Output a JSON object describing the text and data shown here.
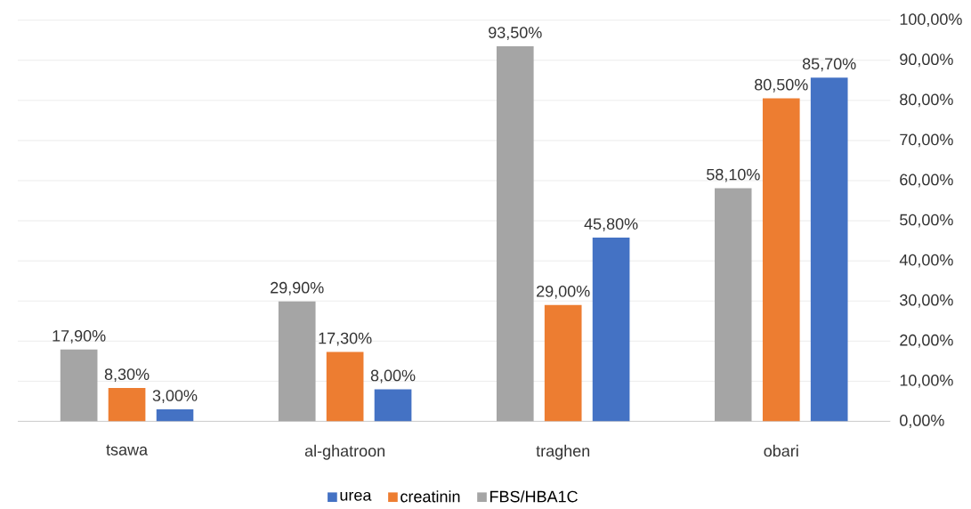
{
  "chart_data": {
    "type": "bar",
    "categories": [
      "tsawa",
      "al-ghatroon",
      "traghen",
      "obari"
    ],
    "series": [
      {
        "name": "FBS/HBA1C",
        "color": "#a5a5a5",
        "values": [
          17.9,
          29.9,
          93.5,
          58.1
        ],
        "value_labels": [
          "17,90%",
          "29,90%",
          "93,50%",
          "58,10%"
        ]
      },
      {
        "name": "creatinin",
        "color": "#ed7d31",
        "values": [
          8.3,
          17.3,
          29.0,
          80.5
        ],
        "value_labels": [
          "8,30%",
          "17,30%",
          "29,00%",
          "80,50%"
        ]
      },
      {
        "name": "urea",
        "color": "#4472c4",
        "values": [
          3.0,
          8.0,
          45.8,
          85.7
        ],
        "value_labels": [
          "3,00%",
          "8,00%",
          "45,80%",
          "85,70%"
        ]
      }
    ],
    "ylim": [
      0,
      100
    ],
    "yticks": [
      {
        "value": 0,
        "label": "0,00%"
      },
      {
        "value": 10,
        "label": "10,00%"
      },
      {
        "value": 20,
        "label": "20,00%"
      },
      {
        "value": 30,
        "label": "30,00%"
      },
      {
        "value": 40,
        "label": "40,00%"
      },
      {
        "value": 50,
        "label": "50,00%"
      },
      {
        "value": 60,
        "label": "60,00%"
      },
      {
        "value": 70,
        "label": "70,00%"
      },
      {
        "value": 80,
        "label": "80,00%"
      },
      {
        "value": 90,
        "label": "90,00%"
      },
      {
        "value": 100,
        "label": "100,00%"
      }
    ],
    "grid": "y",
    "legend": "bottom"
  }
}
